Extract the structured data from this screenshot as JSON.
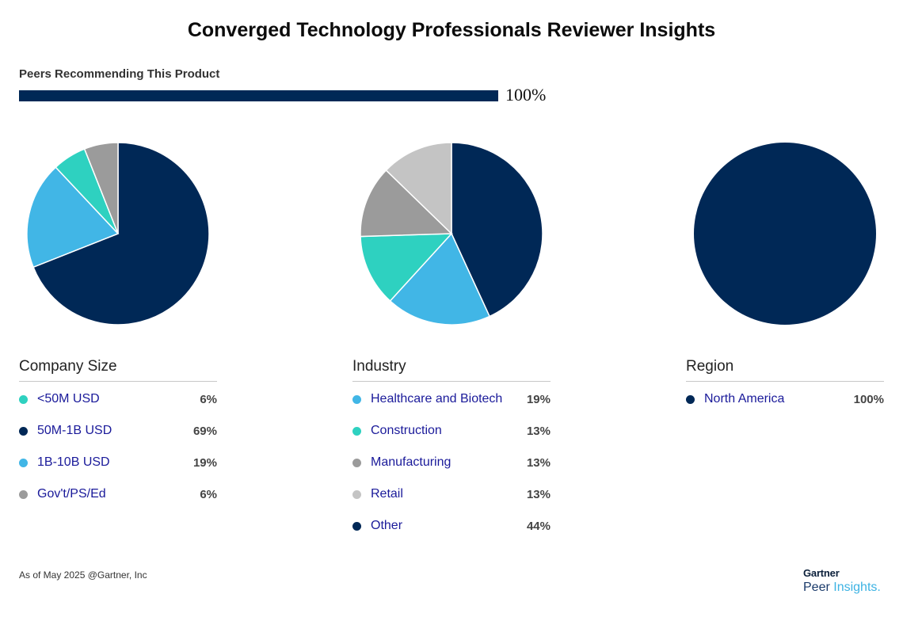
{
  "title": "Converged Technology Professionals Reviewer Insights",
  "recommend": {
    "label": "Peers Recommending This Product",
    "value_text": "100%",
    "fraction": 1.0
  },
  "colors": {
    "navy": "#002856",
    "sky": "#41b6e6",
    "teal": "#2ed1c0",
    "gray": "#9b9b9b",
    "lightgray": "#c4c4c4"
  },
  "chart_data": [
    {
      "type": "pie",
      "title": "Company Size",
      "slices": [
        {
          "label": "<50M USD",
          "value": 6,
          "display": "6%",
          "color": "#2ed1c0"
        },
        {
          "label": "50M-1B USD",
          "value": 69,
          "display": "69%",
          "color": "#002856"
        },
        {
          "label": "1B-10B USD",
          "value": 19,
          "display": "19%",
          "color": "#41b6e6"
        },
        {
          "label": "Gov't/PS/Ed",
          "value": 6,
          "display": "6%",
          "color": "#9b9b9b"
        }
      ],
      "draw_order": [
        1,
        2,
        0,
        3
      ]
    },
    {
      "type": "pie",
      "title": "Industry",
      "slices": [
        {
          "label": "Healthcare and Biotech",
          "value": 19,
          "display": "19%",
          "color": "#41b6e6"
        },
        {
          "label": "Construction",
          "value": 13,
          "display": "13%",
          "color": "#2ed1c0"
        },
        {
          "label": "Manufacturing",
          "value": 13,
          "display": "13%",
          "color": "#9b9b9b"
        },
        {
          "label": "Retail",
          "value": 13,
          "display": "13%",
          "color": "#c4c4c4"
        },
        {
          "label": "Other",
          "value": 44,
          "display": "44%",
          "color": "#002856"
        }
      ],
      "draw_order": [
        4,
        0,
        1,
        2,
        3
      ]
    },
    {
      "type": "pie",
      "title": "Region",
      "slices": [
        {
          "label": "North America",
          "value": 100,
          "display": "100%",
          "color": "#002856"
        }
      ],
      "draw_order": [
        0
      ]
    }
  ],
  "footer": {
    "text": "As of May 2025 @Gartner, Inc"
  },
  "brand": {
    "top": "Gartner",
    "bottom_a": "Peer",
    "bottom_b": "Insights."
  }
}
